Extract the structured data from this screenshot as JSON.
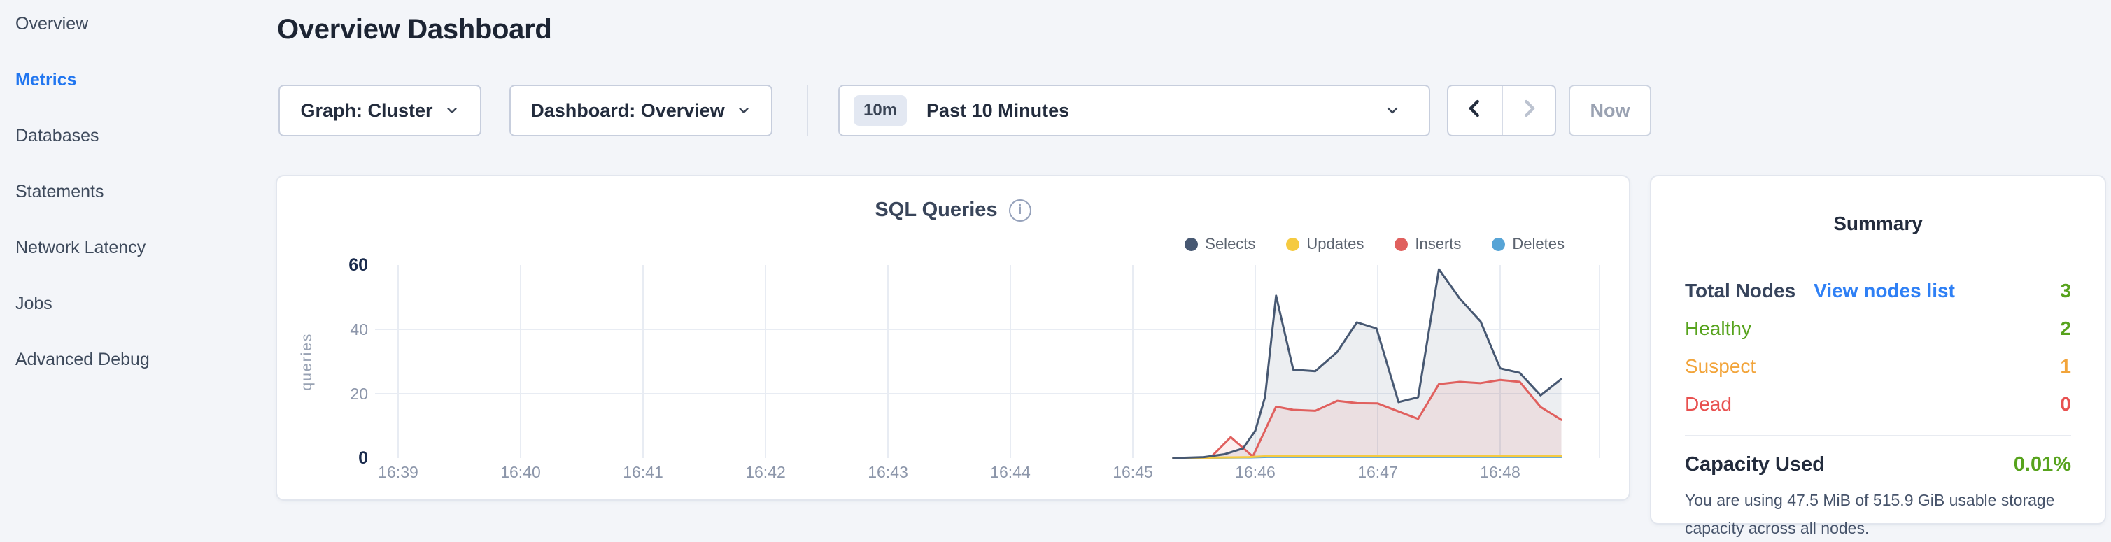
{
  "sidebar": {
    "items": [
      {
        "label": "Overview",
        "active": false
      },
      {
        "label": "Metrics",
        "active": true
      },
      {
        "label": "Databases",
        "active": false
      },
      {
        "label": "Statements",
        "active": false
      },
      {
        "label": "Network Latency",
        "active": false
      },
      {
        "label": "Jobs",
        "active": false
      },
      {
        "label": "Advanced Debug",
        "active": false
      }
    ],
    "active_color": "#2176f0"
  },
  "header": {
    "title": "Overview Dashboard"
  },
  "toolbar": {
    "graph_dropdown": "Graph: Cluster",
    "dashboard_dropdown": "Dashboard: Overview",
    "time_range_badge": "10m",
    "time_range_label": "Past 10 Minutes",
    "prev_arrow": "chevron-left",
    "next_arrow": "chevron-right",
    "now_label": "Now"
  },
  "chart_card": {
    "title": "SQL Queries",
    "info_glyph": "i"
  },
  "chart_data": {
    "type": "area",
    "title": "SQL Queries",
    "ylabel": "queries",
    "x_ticks": [
      "16:39",
      "16:40",
      "16:41",
      "16:42",
      "16:43",
      "16:44",
      "16:45",
      "16:46",
      "16:47",
      "16:48"
    ],
    "y_ticks": [
      {
        "value": 60,
        "emph": true
      },
      {
        "value": 40,
        "emph": false
      },
      {
        "value": 20,
        "emph": false
      },
      {
        "value": 0,
        "emph": true
      }
    ],
    "ylim": [
      0,
      60
    ],
    "x_domain_minutes_from_first_tick": [
      -0.2,
      9.85
    ],
    "grid": "partial",
    "legend_position": "top-right",
    "series": [
      {
        "name": "Selects",
        "color": "#475872",
        "fill": "rgba(72,89,115,0.10)",
        "points": [
          [
            6.33,
            0
          ],
          [
            6.58,
            0.3
          ],
          [
            6.75,
            1.2
          ],
          [
            6.9,
            3
          ],
          [
            7.0,
            8.5
          ],
          [
            7.08,
            19
          ],
          [
            7.17,
            50.5
          ],
          [
            7.31,
            27.5
          ],
          [
            7.49,
            27
          ],
          [
            7.67,
            33
          ],
          [
            7.83,
            42.2
          ],
          [
            7.99,
            40.3
          ],
          [
            8.17,
            17.4
          ],
          [
            8.33,
            18.9
          ],
          [
            8.5,
            58.7
          ],
          [
            8.67,
            49.6
          ],
          [
            8.84,
            42.5
          ],
          [
            9.0,
            27.9
          ],
          [
            9.16,
            26.5
          ],
          [
            9.33,
            19.5
          ],
          [
            9.5,
            24.6
          ]
        ]
      },
      {
        "name": "Updates",
        "color": "#f5ca40",
        "fill": null,
        "points": [
          [
            6.33,
            0
          ],
          [
            6.95,
            0.3
          ],
          [
            7.1,
            0.6
          ],
          [
            9.5,
            0.6
          ]
        ]
      },
      {
        "name": "Inserts",
        "color": "#e0605e",
        "fill": "rgba(222,95,93,0.10)",
        "points": [
          [
            6.33,
            0
          ],
          [
            6.63,
            0
          ],
          [
            6.8,
            6.5
          ],
          [
            6.98,
            0.5
          ],
          [
            7.17,
            16
          ],
          [
            7.31,
            15
          ],
          [
            7.49,
            14.7
          ],
          [
            7.67,
            17.8
          ],
          [
            7.83,
            17.1
          ],
          [
            8.0,
            17
          ],
          [
            8.17,
            14.5
          ],
          [
            8.33,
            12.2
          ],
          [
            8.5,
            23
          ],
          [
            8.67,
            23.7
          ],
          [
            8.84,
            23.3
          ],
          [
            9.0,
            24.3
          ],
          [
            9.16,
            23.7
          ],
          [
            9.33,
            15.9
          ],
          [
            9.5,
            11.9
          ]
        ]
      },
      {
        "name": "Deletes",
        "color": "#57a4d6",
        "fill": null,
        "points": [
          [
            6.33,
            0
          ],
          [
            6.95,
            0.2
          ],
          [
            7.1,
            0.35
          ],
          [
            9.5,
            0.35
          ]
        ]
      }
    ]
  },
  "summary": {
    "title": "Summary",
    "total_nodes_label": "Total Nodes",
    "view_nodes_link": "View nodes list",
    "total_nodes_value": "3",
    "total_value_color": "#57a31d",
    "link_color": "#2f80f5",
    "status_rows": [
      {
        "label": "Healthy",
        "value": "2",
        "color": "#57a31d"
      },
      {
        "label": "Suspect",
        "value": "1",
        "color": "#f2a43a"
      },
      {
        "label": "Dead",
        "value": "0",
        "color": "#e8504f"
      }
    ],
    "capacity_label": "Capacity Used",
    "capacity_value": "0.01%",
    "capacity_note": "You are using 47.5 MiB of 515.9 GiB usable storage capacity across all nodes."
  }
}
